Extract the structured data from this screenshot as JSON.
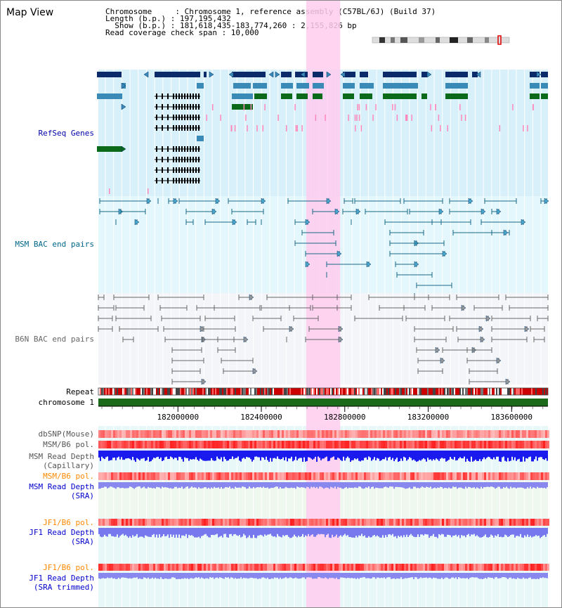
{
  "header": {
    "title": "Map View",
    "info_lines": [
      "Chromosome     : Chromosome 1, reference assembly (C57BL/6J) (Build 37)",
      "Length (b.p.) : 197,195,432",
      "  Show (b.p.) : 181,618,435-183,774,260 : 2,155,826 bp",
      "Read coverage check span : 10,000"
    ]
  },
  "tracks": {
    "refseq": {
      "label": "RefSeq Genes",
      "color": "#0000aa"
    },
    "msm_bac": {
      "label": "MSM BAC end pairs",
      "color": "#006688"
    },
    "b6n_bac": {
      "label": "B6N BAC end pairs",
      "color": "#666666"
    },
    "repeat": {
      "label": "Repeat"
    },
    "chromosome": {
      "label": "chromosome 1"
    },
    "dbsnp": {
      "label": "dbSNP(Mouse)",
      "color": "#555555"
    },
    "msm_b6_pol_1": {
      "label": "MSM/B6 pol.",
      "color": "#555555"
    },
    "msm_depth_cap": {
      "label_1": "MSM Read Depth",
      "label_2": "(Capillary)",
      "color": "#555555"
    },
    "msm_b6_pol_2": {
      "label": "MSM/B6 pol.",
      "color": "#ff8800"
    },
    "msm_depth_sra": {
      "label_1": "MSM Read Depth",
      "label_2": "(SRA)",
      "color": "#0000cc"
    },
    "jf1_b6_pol_1": {
      "label": "JF1/B6 pol.",
      "color": "#ff8800"
    },
    "jf1_depth_sra": {
      "label_1": "JF1 Read Depth",
      "label_2": "(SRA)",
      "color": "#0000cc"
    },
    "jf1_b6_pol_2": {
      "label": "JF1/B6 pol.",
      "color": "#ff8800"
    },
    "jf1_depth_trim": {
      "label_1": "JF1 Read Depth",
      "label_2": "(SRA trimmed)",
      "color": "#0000cc"
    }
  },
  "axis": {
    "start_bp": 181618435,
    "end_bp": 183774260,
    "tick_labels": [
      "182000000",
      "182400000",
      "182800000",
      "183200000",
      "183600000"
    ],
    "tick_values": [
      182000000,
      182400000,
      182800000,
      183200000,
      183600000
    ]
  },
  "highlight_region": {
    "start_bp": 182615000,
    "end_bp": 182778000,
    "color": "#ffccee"
  },
  "colors": {
    "refseq_bg": "#d8f0fa",
    "msm_bg": "#e4f7fc",
    "b6n_bg": "#f3f5f8",
    "gene_dark": "#0a2a6a",
    "gene_mid": "#3a8ab8",
    "gene_green": "#0a6a1a",
    "chrom_bar": "#1a6a1a"
  }
}
